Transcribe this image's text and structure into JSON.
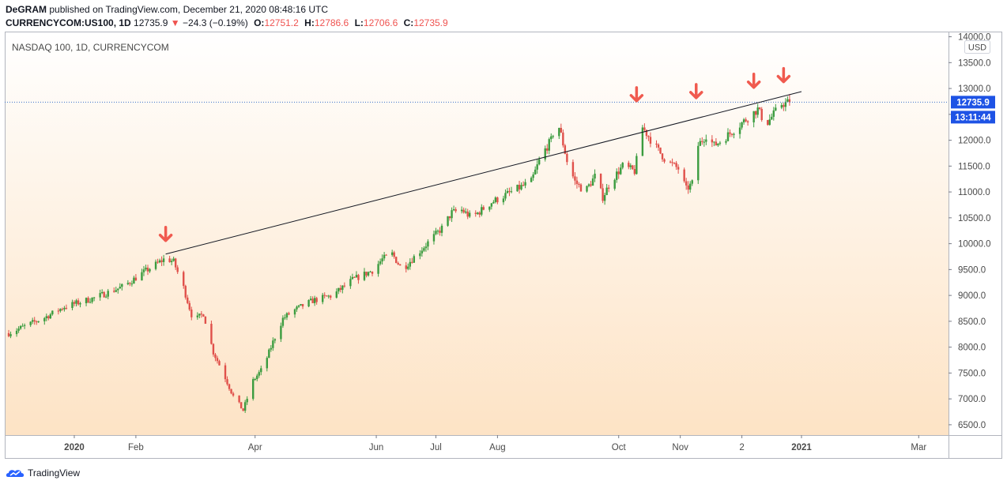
{
  "header": {
    "author": "DeGRAM",
    "published_text": "published on TradingView.com, December 21, 2020 08:48:16 UTC",
    "symbol": "CURRENCYCOM:US100, 1D",
    "last": "12735.9",
    "change": "−24.3 (−0.19%)",
    "open_label": "O:",
    "open": "12751.2",
    "high_label": "H:",
    "high": "12786.6",
    "low_label": "L:",
    "low": "12706.6",
    "close_label": "C:",
    "close": "12735.9"
  },
  "footer": {
    "brand": "TradingView"
  },
  "colors": {
    "up": "#26a69a",
    "down": "#ef5350",
    "candle_up": "#3b9c3f",
    "candle_down": "#e0504a",
    "badge": "#2962ff",
    "badge_dark": "#1e53e5",
    "axis_text": "#4a4a4a",
    "bg_top": "#ffffff",
    "bg_bottom": "#fde3c5",
    "arrow": "#f05a4f"
  },
  "chart_data": {
    "type": "candlestick",
    "title": "NASDAQ 100, 1D, CURRENCYCOM",
    "currency": "USD",
    "ylim": [
      6300,
      14100
    ],
    "y_ticks": [
      6500,
      7000,
      7500,
      8000,
      8500,
      9000,
      9500,
      10000,
      10500,
      11000,
      11500,
      12000,
      12500,
      13000,
      13500,
      14000
    ],
    "y_tick_labels": [
      "6500.0",
      "7000.0",
      "7500.0",
      "8000.0",
      "8500.0",
      "9000.0",
      "9500.0",
      "10000.0",
      "10500.0",
      "11000.0",
      "11500.0",
      "12000.0",
      "12500.0",
      "13000.0",
      "13500.0",
      "14000.0"
    ],
    "x_range_days": [
      -35,
      440
    ],
    "x_ticks": [
      {
        "day": 0,
        "label": "2020"
      },
      {
        "day": 31,
        "label": "Feb"
      },
      {
        "day": 91,
        "label": "Apr"
      },
      {
        "day": 152,
        "label": "Jun"
      },
      {
        "day": 182,
        "label": "Jul"
      },
      {
        "day": 213,
        "label": "Aug"
      },
      {
        "day": 274,
        "label": "Oct"
      },
      {
        "day": 305,
        "label": "Nov"
      },
      {
        "day": 336,
        "label": "2"
      },
      {
        "day": 366,
        "label": "2021"
      },
      {
        "day": 425,
        "label": "Mar"
      }
    ],
    "last_price_label": "12735.9",
    "last_price": 12735.9,
    "countdown": "13:11:44",
    "path_knots": [
      [
        -33,
        8270
      ],
      [
        -15,
        8570
      ],
      [
        -5,
        8780
      ],
      [
        10,
        8950
      ],
      [
        25,
        9180
      ],
      [
        35,
        9450
      ],
      [
        46,
        9720
      ],
      [
        50,
        9650
      ],
      [
        55,
        9150
      ],
      [
        60,
        8500
      ],
      [
        65,
        8650
      ],
      [
        70,
        7900
      ],
      [
        75,
        7500
      ],
      [
        80,
        7050
      ],
      [
        85,
        6780
      ],
      [
        90,
        7350
      ],
      [
        95,
        7600
      ],
      [
        100,
        8100
      ],
      [
        105,
        8550
      ],
      [
        110,
        8700
      ],
      [
        120,
        8900
      ],
      [
        130,
        9000
      ],
      [
        140,
        9300
      ],
      [
        150,
        9480
      ],
      [
        155,
        9700
      ],
      [
        160,
        9800
      ],
      [
        165,
        9500
      ],
      [
        175,
        9900
      ],
      [
        185,
        10300
      ],
      [
        190,
        10600
      ],
      [
        195,
        10650
      ],
      [
        200,
        10500
      ],
      [
        210,
        10800
      ],
      [
        220,
        11000
      ],
      [
        230,
        11200
      ],
      [
        235,
        11700
      ],
      [
        240,
        12000
      ],
      [
        243,
        12400
      ],
      [
        245,
        12100
      ],
      [
        248,
        11600
      ],
      [
        252,
        11200
      ],
      [
        257,
        11000
      ],
      [
        262,
        11300
      ],
      [
        266,
        10900
      ],
      [
        270,
        11200
      ],
      [
        276,
        11500
      ],
      [
        282,
        11400
      ],
      [
        286,
        12250
      ],
      [
        292,
        11900
      ],
      [
        298,
        11600
      ],
      [
        304,
        11450
      ],
      [
        308,
        11050
      ],
      [
        312,
        11200
      ],
      [
        314,
        11900
      ],
      [
        318,
        12100
      ],
      [
        322,
        11900
      ],
      [
        326,
        12000
      ],
      [
        332,
        12200
      ],
      [
        338,
        12400
      ],
      [
        344,
        12600
      ],
      [
        348,
        12300
      ],
      [
        352,
        12500
      ],
      [
        356,
        12700
      ],
      [
        360,
        12736
      ]
    ],
    "trendline": {
      "start": [
        46,
        9800
      ],
      "end": [
        366,
        12940
      ]
    },
    "arrows": [
      {
        "day": 46,
        "value": 9800
      },
      {
        "day": 283,
        "value": 12500
      },
      {
        "day": 313,
        "value": 12560
      },
      {
        "day": 342,
        "value": 12760
      },
      {
        "day": 357,
        "value": 12870
      }
    ]
  }
}
